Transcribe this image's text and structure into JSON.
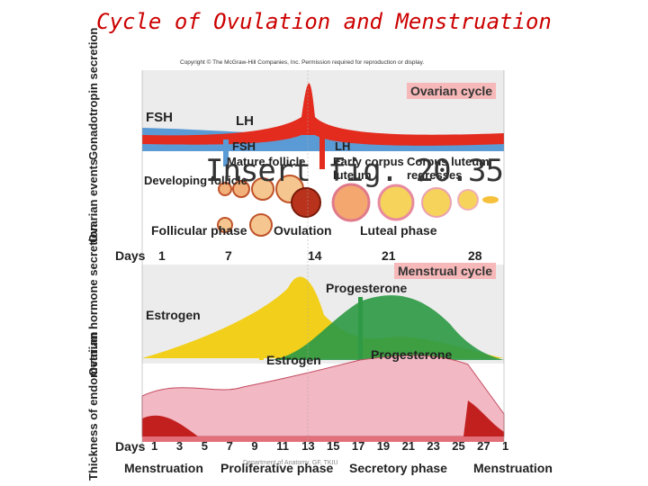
{
  "title": "Cycle of Ovulation and Menstruation",
  "copyright": "Copyright © The McGraw-Hill Companies, Inc. Permission required for reproduction or display.",
  "insert_text": "Insert fig. 20.35",
  "footer": "Department of Anatomy, GF, TKIU",
  "left_labels": {
    "gonadotropin": "Gonadotropin secretion",
    "ovarian_events": "Ovarian events",
    "ovarian_hormone": "Ovarian hormone secretion",
    "endometrium": "Thickness of endometrium"
  },
  "top_panel": {
    "box": "Ovarian cycle",
    "fsh": "FSH",
    "lh": "LH",
    "fsh_small": "FSH",
    "lh_small": "LH"
  },
  "ovarian": {
    "mature_follicle": "Mature follicle",
    "developing_follicle": "Developing follicle",
    "early_corpus_luteum": "Early corpus luteum",
    "corpus_luteum_regresses": "Corpus luteum regresses",
    "follicular_phase": "Follicular phase",
    "ovulation": "Ovulation",
    "luteal_phase": "Luteal phase"
  },
  "days_row1": {
    "label": "Days",
    "values": [
      "1",
      "7",
      "14",
      "21",
      "28"
    ]
  },
  "hormone_panel": {
    "box": "Menstrual cycle",
    "progesterone": "Progesterone",
    "estrogen": "Estrogen",
    "estrogen_arrow": "Estrogen",
    "progesterone_arrow": "Progesterone"
  },
  "days_row2": {
    "label": "Days",
    "values": [
      "1",
      "3",
      "5",
      "7",
      "9",
      "11",
      "13",
      "15",
      "17",
      "19",
      "21",
      "23",
      "25",
      "27",
      "1"
    ]
  },
  "phases": [
    "Menstruation",
    "Proliferative phase",
    "Secretory phase",
    "Menstruation"
  ],
  "colors": {
    "title": "#cc0000",
    "fsh": "#5b9bd5",
    "lh": "#e32b1e",
    "estrogen": "#f2cf1b",
    "progesterone": "#2f9a45",
    "box": "#f6b8b8"
  }
}
